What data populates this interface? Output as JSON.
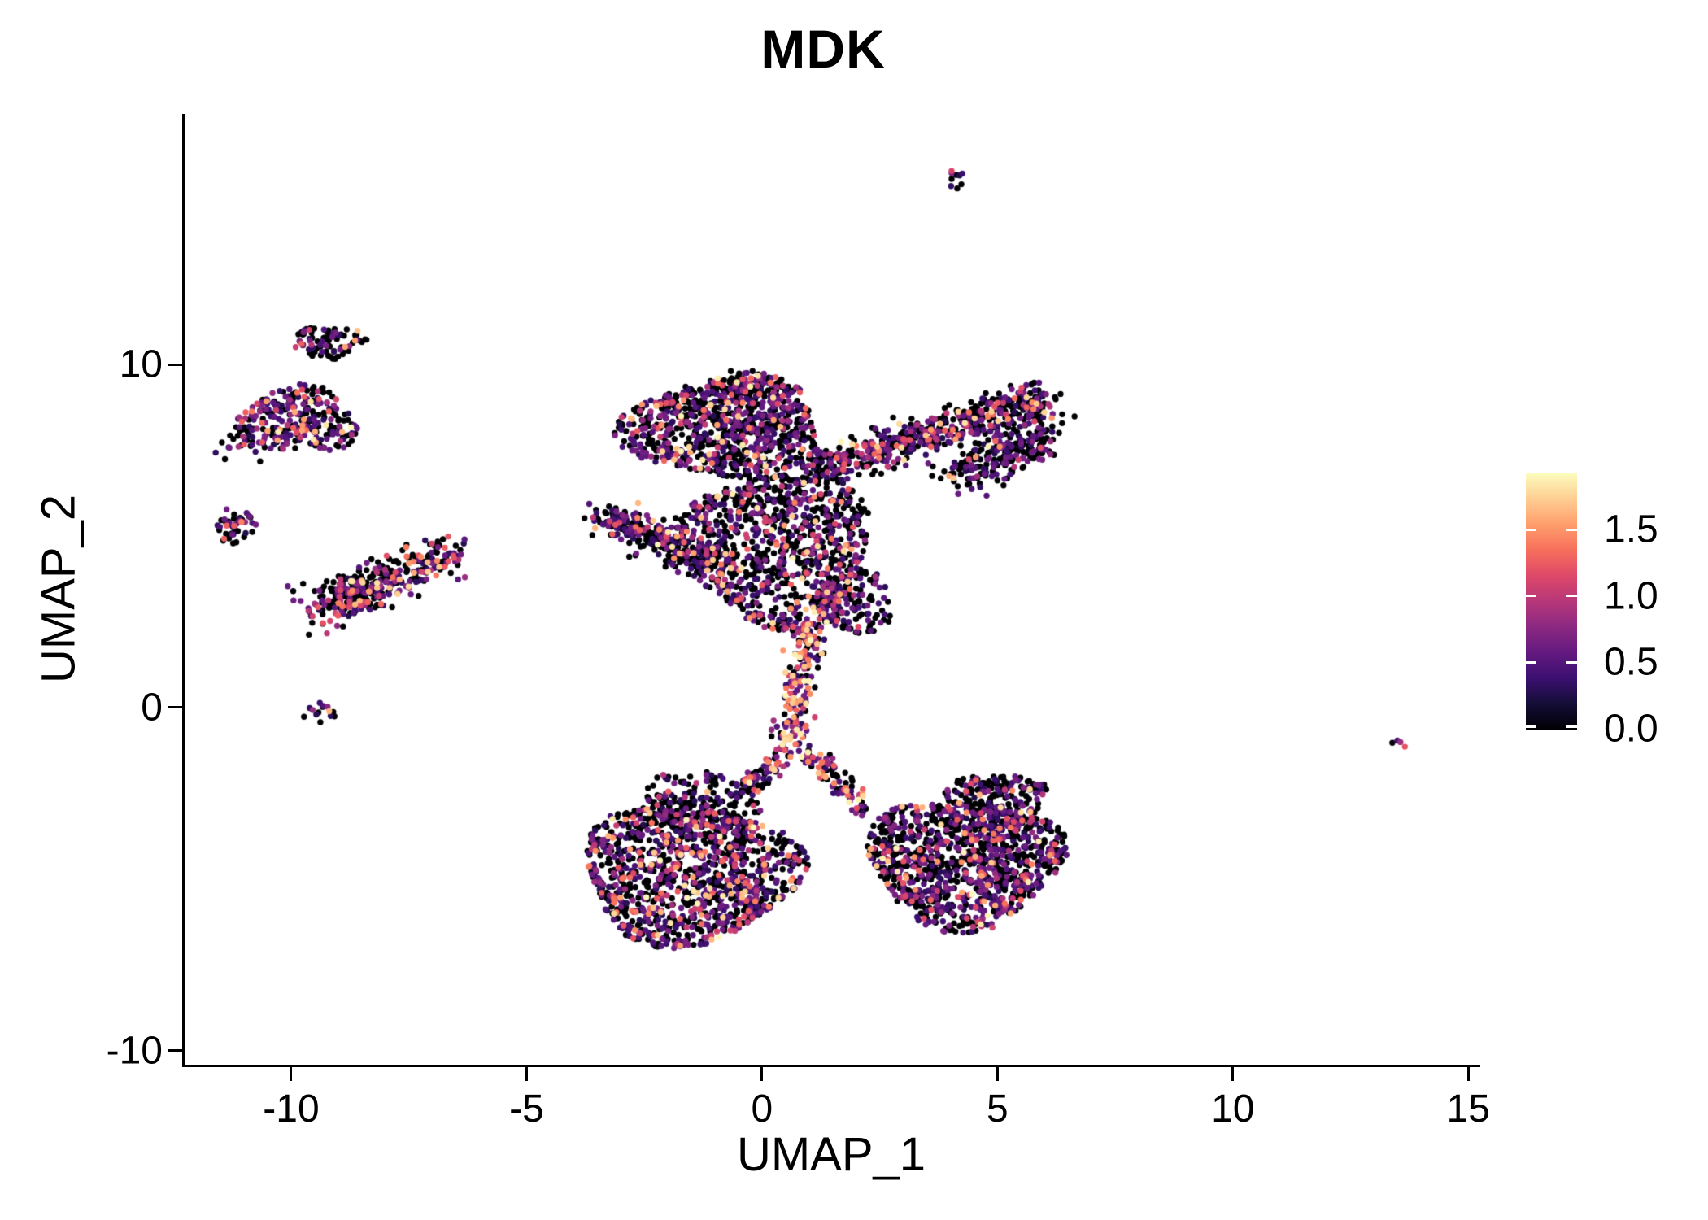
{
  "title": "MDK",
  "axes": {
    "x": {
      "label": "UMAP_1",
      "tick_values": [
        -10,
        -5,
        0,
        5,
        10,
        15
      ],
      "tick_labels": [
        "-10",
        "-5",
        "0",
        "5",
        "10",
        "15"
      ],
      "lim": [
        -12.28,
        15.22
      ]
    },
    "y": {
      "label": "UMAP_2",
      "tick_values": [
        10,
        0,
        -10
      ],
      "tick_labels": [
        "10",
        "0",
        "-10"
      ],
      "lim": [
        -10.43,
        17.3
      ]
    }
  },
  "colorbar": {
    "tick_labels": [
      "1.5",
      "1.0",
      "0.5",
      "0.0"
    ],
    "tick_values": [
      1.5,
      1.0,
      0.5,
      0.0
    ],
    "value_range": [
      0,
      1.92
    ]
  },
  "colors": {
    "background": "#ffffff",
    "axis": "#000000",
    "text": "#000000",
    "palette_magma": [
      {
        "t": 0.0,
        "c": "#000004"
      },
      {
        "t": 0.1,
        "c": "#140e36"
      },
      {
        "t": 0.2,
        "c": "#3b0f70"
      },
      {
        "t": 0.3,
        "c": "#641a80"
      },
      {
        "t": 0.4,
        "c": "#8c2981"
      },
      {
        "t": 0.5,
        "c": "#b73779"
      },
      {
        "t": 0.6,
        "c": "#de4968"
      },
      {
        "t": 0.7,
        "c": "#f7705c"
      },
      {
        "t": 0.8,
        "c": "#fe9f6d"
      },
      {
        "t": 0.9,
        "c": "#fecf92"
      },
      {
        "t": 1.0,
        "c": "#fcfdbf"
      }
    ]
  },
  "chart_data": {
    "type": "scatter",
    "title": "MDK",
    "xlabel": "UMAP_1",
    "ylabel": "UMAP_2",
    "xlim": [
      -12.28,
      15.22
    ],
    "ylim": [
      -10.43,
      17.3
    ],
    "value_range": [
      0,
      1.92
    ],
    "seed": 1337,
    "point_radius_px": 3.7,
    "expression_bins": {
      "zero": 0,
      "low": [
        0.25,
        0.7
      ],
      "mid": [
        0.7,
        1.3
      ],
      "high": [
        1.3,
        1.9
      ]
    },
    "clusters": [
      {
        "name": "top-isolate",
        "shape": "gauss",
        "cx": 4.15,
        "cy": 15.45,
        "rx": 0.2,
        "ry": 0.38,
        "n": 9,
        "expr": [
          0.4,
          0.45,
          0.15,
          0
        ]
      },
      {
        "name": "nw-cluster",
        "shape": "disc",
        "cx": -9.15,
        "cy": 10.65,
        "rx": 0.75,
        "ry": 0.48,
        "n": 85,
        "expr": [
          0.62,
          0.26,
          0.1,
          0.02
        ]
      },
      {
        "name": "nw-tip",
        "shape": "gauss",
        "cx": -9.9,
        "cy": 10.55,
        "rx": 0.13,
        "ry": 0.1,
        "n": 3,
        "values": [
          1.05,
          1.25,
          0.85
        ]
      },
      {
        "name": "west-large",
        "shape": "disc",
        "cx": -9.85,
        "cy": 8.35,
        "rx": 1.25,
        "ry": 0.98,
        "n": 270,
        "expr": [
          0.42,
          0.36,
          0.16,
          0.06
        ]
      },
      {
        "name": "west-tail",
        "shape": "gauss",
        "cx": -11.1,
        "cy": 7.75,
        "rx": 0.35,
        "ry": 0.4,
        "n": 22,
        "expr": [
          0.5,
          0.35,
          0.15,
          0
        ]
      },
      {
        "name": "west-small",
        "shape": "disc",
        "cx": -11.2,
        "cy": 5.3,
        "rx": 0.45,
        "ry": 0.55,
        "n": 48,
        "expr": [
          0.48,
          0.33,
          0.13,
          0.06
        ]
      },
      {
        "name": "sw-knot",
        "shape": "disc",
        "cx": -8.55,
        "cy": 3.25,
        "rx": 0.62,
        "ry": 0.52,
        "n": 90,
        "expr": [
          0.45,
          0.3,
          0.15,
          0.1
        ]
      },
      {
        "name": "west-isolate",
        "shape": "gauss",
        "cx": -9.35,
        "cy": -0.15,
        "rx": 0.3,
        "ry": 0.28,
        "n": 14,
        "expr": [
          0.45,
          0.2,
          0.15,
          0.2
        ]
      },
      {
        "name": "top-lobe",
        "shape": "disc",
        "cx": -0.75,
        "cy": 8.15,
        "rx": 2.15,
        "ry": 1.5,
        "n": 820,
        "expr": [
          0.55,
          0.29,
          0.1,
          0.06
        ]
      },
      {
        "name": "top-lobe-peak",
        "shape": "gauss",
        "cx": -0.35,
        "cy": 9.3,
        "rx": 0.55,
        "ry": 0.35,
        "n": 70,
        "expr": [
          0.55,
          0.3,
          0.1,
          0.05
        ]
      },
      {
        "name": "central-mass",
        "shape": "disc",
        "cx": 0.35,
        "cy": 4.65,
        "rx": 2.0,
        "ry": 2.3,
        "n": 980,
        "expr": [
          0.54,
          0.28,
          0.12,
          0.06
        ]
      },
      {
        "name": "central-spur",
        "shape": "disc",
        "cx": 1.95,
        "cy": 3.1,
        "rx": 0.85,
        "ry": 0.95,
        "n": 150,
        "expr": [
          0.6,
          0.27,
          0.09,
          0.04
        ]
      },
      {
        "name": "bottom-left",
        "shape": "disc",
        "cx": -1.55,
        "cy": -4.85,
        "rx": 2.3,
        "ry": 2.0,
        "n": 1150,
        "expr": [
          0.5,
          0.31,
          0.12,
          0.07
        ]
      },
      {
        "name": "bottom-left-top",
        "shape": "disc",
        "cx": -1.3,
        "cy": -2.7,
        "rx": 1.3,
        "ry": 0.85,
        "n": 170,
        "expr": [
          0.62,
          0.25,
          0.09,
          0.04
        ]
      },
      {
        "name": "bottom-right",
        "shape": "disc",
        "cx": 4.3,
        "cy": -4.5,
        "rx": 2.05,
        "ry": 1.9,
        "n": 1080,
        "expr": [
          0.55,
          0.3,
          0.11,
          0.04
        ]
      },
      {
        "name": "bottom-right-top",
        "shape": "disc",
        "cx": 5.0,
        "cy": -2.7,
        "rx": 1.05,
        "ry": 0.8,
        "n": 200,
        "expr": [
          0.6,
          0.32,
          0.06,
          0.02
        ]
      },
      {
        "name": "between-pair",
        "shape": "gauss",
        "cx": -0.15,
        "cy": -5.6,
        "rx": 0.2,
        "ry": 0.16,
        "n": 3,
        "values": [
          1.65,
          1.4,
          0.8
        ]
      },
      {
        "name": "far-right-isolate",
        "shape": "gauss",
        "cx": 13.55,
        "cy": -1.05,
        "rx": 0.17,
        "ry": 0.13,
        "n": 4,
        "values": [
          1.2,
          0.85,
          0.45,
          0.05
        ]
      },
      {
        "name": "ne-arm-tip",
        "shape": "gauss",
        "cx": 5.8,
        "cy": 8.75,
        "rx": 0.4,
        "ry": 0.5,
        "n": 55,
        "expr": [
          0.5,
          0.3,
          0.12,
          0.08
        ]
      }
    ],
    "bands": [
      {
        "name": "ne-arm",
        "x1": 1.25,
        "y1": 6.95,
        "x2": 5.8,
        "y2": 8.9,
        "w": 0.55,
        "n": 520,
        "expr": [
          0.52,
          0.3,
          0.13,
          0.05
        ]
      },
      {
        "name": "ne-arm-lower",
        "x1": 4.1,
        "y1": 6.7,
        "x2": 6.1,
        "y2": 7.9,
        "w": 0.55,
        "n": 220,
        "expr": [
          0.58,
          0.3,
          0.09,
          0.03
        ]
      },
      {
        "name": "left-wing",
        "x1": -3.4,
        "y1": 5.55,
        "x2": -0.95,
        "y2": 4.2,
        "w": 0.5,
        "n": 300,
        "expr": [
          0.55,
          0.29,
          0.1,
          0.06
        ]
      },
      {
        "name": "bridge",
        "x1": 0.95,
        "y1": 2.35,
        "x2": 0.6,
        "y2": -1.1,
        "w": 0.36,
        "n": 190,
        "expr": [
          0.3,
          0.26,
          0.2,
          0.24
        ]
      },
      {
        "name": "fork-left",
        "x1": 0.5,
        "y1": -1.2,
        "x2": -0.35,
        "y2": -2.3,
        "w": 0.3,
        "n": 70,
        "expr": [
          0.45,
          0.3,
          0.13,
          0.12
        ]
      },
      {
        "name": "fork-right",
        "x1": 0.95,
        "y1": -1.3,
        "x2": 2.15,
        "y2": -2.9,
        "w": 0.32,
        "n": 95,
        "expr": [
          0.35,
          0.25,
          0.2,
          0.2
        ]
      },
      {
        "name": "sw-arm",
        "x1": -9.5,
        "y1": 2.85,
        "x2": -6.6,
        "y2": 4.5,
        "w": 0.66,
        "n": 300,
        "expr": [
          0.5,
          0.3,
          0.14,
          0.06
        ]
      }
    ]
  }
}
